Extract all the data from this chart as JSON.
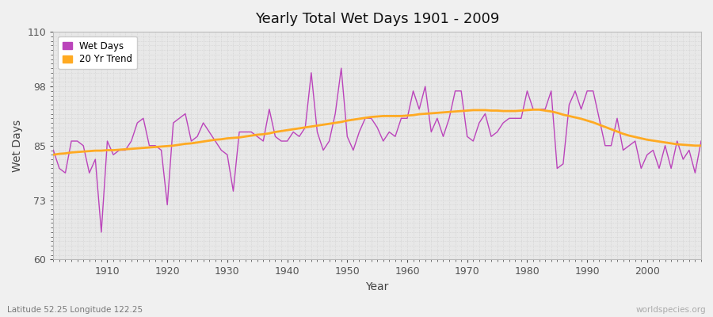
{
  "title": "Yearly Total Wet Days 1901 - 2009",
  "xlabel": "Year",
  "ylabel": "Wet Days",
  "xlim": [
    1901,
    2009
  ],
  "ylim": [
    60,
    110
  ],
  "yticks": [
    60,
    73,
    85,
    98,
    110
  ],
  "xticks": [
    1910,
    1920,
    1930,
    1940,
    1950,
    1960,
    1970,
    1980,
    1990,
    2000
  ],
  "wet_days_color": "#bb44bb",
  "trend_color": "#ffaa22",
  "fig_bg_color": "#f0f0f0",
  "plot_bg_color": "#e8e8e8",
  "grid_color": "#cccccc",
  "subtitle_left": "Latitude 52.25 Longitude 122.25",
  "subtitle_right": "worldspecies.org",
  "legend_labels": [
    "Wet Days",
    "20 Yr Trend"
  ],
  "years": [
    1901,
    1902,
    1903,
    1904,
    1905,
    1906,
    1907,
    1908,
    1909,
    1910,
    1911,
    1912,
    1913,
    1914,
    1915,
    1916,
    1917,
    1918,
    1919,
    1920,
    1921,
    1922,
    1923,
    1924,
    1925,
    1926,
    1927,
    1928,
    1929,
    1930,
    1931,
    1932,
    1933,
    1934,
    1935,
    1936,
    1937,
    1938,
    1939,
    1940,
    1941,
    1942,
    1943,
    1944,
    1945,
    1946,
    1947,
    1948,
    1949,
    1950,
    1951,
    1952,
    1953,
    1954,
    1955,
    1956,
    1957,
    1958,
    1959,
    1960,
    1961,
    1962,
    1963,
    1964,
    1965,
    1966,
    1967,
    1968,
    1969,
    1970,
    1971,
    1972,
    1973,
    1974,
    1975,
    1976,
    1977,
    1978,
    1979,
    1980,
    1981,
    1982,
    1983,
    1984,
    1985,
    1986,
    1987,
    1988,
    1989,
    1990,
    1991,
    1992,
    1993,
    1994,
    1995,
    1996,
    1997,
    1998,
    1999,
    2000,
    2001,
    2002,
    2003,
    2004,
    2005,
    2006,
    2007,
    2008,
    2009
  ],
  "wet_days": [
    84,
    80,
    79,
    86,
    86,
    85,
    79,
    82,
    66,
    86,
    83,
    84,
    84,
    86,
    90,
    91,
    85,
    85,
    84,
    72,
    90,
    91,
    92,
    86,
    87,
    90,
    88,
    86,
    84,
    83,
    75,
    88,
    88,
    88,
    87,
    86,
    93,
    87,
    86,
    86,
    88,
    87,
    89,
    101,
    88,
    84,
    86,
    92,
    102,
    87,
    84,
    88,
    91,
    91,
    89,
    86,
    88,
    87,
    91,
    91,
    97,
    93,
    98,
    88,
    91,
    87,
    91,
    97,
    97,
    87,
    86,
    90,
    92,
    87,
    88,
    90,
    91,
    91,
    91,
    97,
    93,
    93,
    93,
    97,
    80,
    81,
    94,
    97,
    93,
    97,
    97,
    91,
    85,
    85,
    91,
    84,
    85,
    86,
    80,
    83,
    84,
    80,
    85,
    80,
    86,
    82,
    84,
    79,
    86
  ],
  "trend": [
    83.0,
    83.2,
    83.3,
    83.5,
    83.6,
    83.7,
    83.8,
    83.9,
    83.9,
    84.0,
    84.0,
    84.1,
    84.2,
    84.3,
    84.4,
    84.5,
    84.6,
    84.7,
    84.8,
    84.9,
    85.0,
    85.2,
    85.4,
    85.5,
    85.7,
    85.9,
    86.1,
    86.3,
    86.4,
    86.6,
    86.7,
    86.8,
    87.0,
    87.2,
    87.4,
    87.5,
    87.7,
    88.0,
    88.2,
    88.4,
    88.6,
    88.8,
    89.0,
    89.2,
    89.4,
    89.6,
    89.8,
    90.0,
    90.2,
    90.5,
    90.7,
    90.9,
    91.1,
    91.3,
    91.4,
    91.5,
    91.5,
    91.5,
    91.5,
    91.6,
    91.7,
    91.9,
    92.0,
    92.1,
    92.2,
    92.3,
    92.4,
    92.5,
    92.6,
    92.7,
    92.8,
    92.8,
    92.8,
    92.7,
    92.7,
    92.6,
    92.6,
    92.6,
    92.7,
    92.8,
    92.9,
    92.9,
    92.7,
    92.5,
    92.2,
    91.8,
    91.5,
    91.2,
    90.9,
    90.5,
    90.1,
    89.6,
    89.1,
    88.6,
    88.1,
    87.6,
    87.2,
    86.9,
    86.6,
    86.3,
    86.1,
    85.9,
    85.7,
    85.5,
    85.3,
    85.2,
    85.1,
    85.0,
    85.0
  ]
}
